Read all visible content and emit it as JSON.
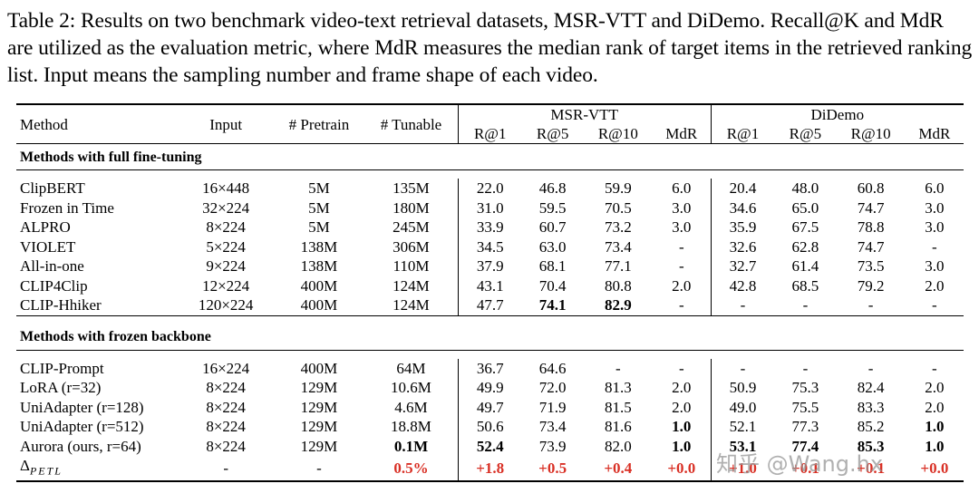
{
  "caption": "Table 2: Results on two benchmark video-text retrieval datasets, MSR-VTT and DiDemo. Recall@K and MdR are utilized as the evaluation metric, where MdR measures the median rank of target items in the retrieved ranking list. Input means the sampling number and frame shape of each video.",
  "headers": {
    "method": "Method",
    "input": "Input",
    "pretrain": "# Pretrain",
    "tunable": "# Tunable",
    "group1": "MSR-VTT",
    "group2": "DiDemo",
    "metrics": [
      "R@1",
      "R@5",
      "R@10",
      "MdR",
      "R@1",
      "R@5",
      "R@10",
      "MdR"
    ]
  },
  "sections": [
    {
      "title": "Methods with full fine-tuning",
      "rows": [
        {
          "method": "ClipBERT",
          "input": "16×448",
          "pretrain": "5M",
          "tunable": "135M",
          "vals": [
            "22.0",
            "46.8",
            "59.9",
            "6.0",
            "20.4",
            "48.0",
            "60.8",
            "6.0"
          ],
          "bold": []
        },
        {
          "method": "Frozen in Time",
          "input": "32×224",
          "pretrain": "5M",
          "tunable": "180M",
          "vals": [
            "31.0",
            "59.5",
            "70.5",
            "3.0",
            "34.6",
            "65.0",
            "74.7",
            "3.0"
          ],
          "bold": []
        },
        {
          "method": "ALPRO",
          "input": "8×224",
          "pretrain": "5M",
          "tunable": "245M",
          "vals": [
            "33.9",
            "60.7",
            "73.2",
            "3.0",
            "35.9",
            "67.5",
            "78.8",
            "3.0"
          ],
          "bold": []
        },
        {
          "method": "VIOLET",
          "input": "5×224",
          "pretrain": "138M",
          "tunable": "306M",
          "vals": [
            "34.5",
            "63.0",
            "73.4",
            "-",
            "32.6",
            "62.8",
            "74.7",
            "-"
          ],
          "bold": []
        },
        {
          "method": "All-in-one",
          "input": "9×224",
          "pretrain": "138M",
          "tunable": "110M",
          "vals": [
            "37.9",
            "68.1",
            "77.1",
            "-",
            "32.7",
            "61.4",
            "73.5",
            "3.0"
          ],
          "bold": []
        },
        {
          "method": "CLIP4Clip",
          "input": "12×224",
          "pretrain": "400M",
          "tunable": "124M",
          "vals": [
            "43.1",
            "70.4",
            "80.8",
            "2.0",
            "42.8",
            "68.5",
            "79.2",
            "2.0"
          ],
          "bold": []
        },
        {
          "method": "CLIP-Hhiker",
          "input": "120×224",
          "pretrain": "400M",
          "tunable": "124M",
          "vals": [
            "47.7",
            "74.1",
            "82.9",
            "-",
            "-",
            "-",
            "-",
            "-"
          ],
          "bold": [
            1,
            2
          ]
        }
      ]
    },
    {
      "title": "Methods with frozen backbone",
      "rows": [
        {
          "method": "CLIP-Prompt",
          "input": "16×224",
          "pretrain": "400M",
          "tunable": "64M",
          "vals": [
            "36.7",
            "64.6",
            "-",
            "-",
            "-",
            "-",
            "-",
            "-"
          ],
          "bold": []
        },
        {
          "method": "LoRA (r=32)",
          "input": "8×224",
          "pretrain": "129M",
          "tunable": "10.6M",
          "vals": [
            "49.9",
            "72.0",
            "81.3",
            "2.0",
            "50.9",
            "75.3",
            "82.4",
            "2.0"
          ],
          "bold": []
        },
        {
          "method": "UniAdapter (r=128)",
          "input": "8×224",
          "pretrain": "129M",
          "tunable": "4.6M",
          "vals": [
            "49.7",
            "71.9",
            "81.5",
            "2.0",
            "49.0",
            "75.5",
            "83.3",
            "2.0"
          ],
          "bold": []
        },
        {
          "method": "UniAdapter (r=512)",
          "input": "8×224",
          "pretrain": "129M",
          "tunable": "18.8M",
          "vals": [
            "50.6",
            "73.4",
            "81.6",
            "1.0",
            "52.1",
            "77.3",
            "85.2",
            "1.0"
          ],
          "bold": [
            3,
            7
          ]
        },
        {
          "method": "Aurora (ours, r=64)",
          "input": "8×224",
          "pretrain": "129M",
          "tunable": "0.1M",
          "vals": [
            "52.4",
            "73.9",
            "82.0",
            "1.0",
            "53.1",
            "77.4",
            "85.3",
            "1.0"
          ],
          "bold": [
            0,
            3,
            4,
            5,
            6,
            7
          ],
          "tunable_bold": true
        }
      ]
    }
  ],
  "delta_row": {
    "method": "Δ",
    "method_sub": "PETL",
    "input": "-",
    "pretrain": "-",
    "tunable": "0.5%",
    "vals": [
      "+1.8",
      "+0.5",
      "+0.4",
      "+0.0",
      "+1.0",
      "+0.1",
      "+0.1",
      "+0.0"
    ]
  },
  "watermark": "知乎 @Wang.hx",
  "colors": {
    "delta": "#d93025"
  }
}
